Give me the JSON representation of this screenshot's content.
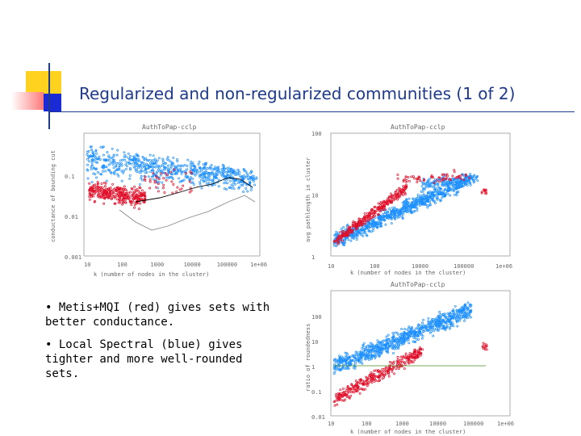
{
  "slide": {
    "title": "Regularized and non-regularized communities (1 of 2)",
    "bullets": [
      "• Metis+MQI (red) gives sets with better conductance.",
      "• Local Spectral (blue) gives tighter and more well-rounded sets."
    ]
  },
  "colors": {
    "title": "#1f3a8a",
    "series_blue": "#1e90ff",
    "series_red": "#e0102a",
    "deco_yellow": "#ffd21f",
    "deco_blue": "#1a2bd6",
    "deco_red": "#ff7a7a"
  },
  "chart_data": [
    {
      "type": "scatter",
      "title": "AuthToPap-cclp",
      "xlabel": "k (number of nodes in the cluster)",
      "ylabel": "conductance of bounding cut",
      "x_ticks": [
        "10",
        "100",
        "1000",
        "10000",
        "100000",
        "1e+06"
      ],
      "y_ticks": [
        "0.1",
        "0.01",
        "0.001"
      ],
      "xscale": "log",
      "yscale": "log",
      "xlim": [
        10,
        1000000
      ],
      "ylim": [
        0.001,
        1
      ],
      "series": [
        {
          "name": "Local Spectral",
          "color": "blue"
        },
        {
          "name": "Metis+MQI",
          "color": "red"
        },
        {
          "name": "black curve",
          "color": "black"
        },
        {
          "name": "gray curve",
          "color": "gray"
        }
      ]
    },
    {
      "type": "scatter",
      "title": "AuthToPap-cclp",
      "xlabel": "k (number of nodes in the cluster)",
      "ylabel": "avg pathlength in cluster",
      "x_ticks": [
        "10",
        "100",
        "10000",
        "100000",
        "1e+06"
      ],
      "y_ticks": [
        "100",
        "10",
        "1"
      ],
      "xscale": "log",
      "yscale": "log",
      "xlim": [
        10,
        1000000
      ],
      "ylim": [
        1,
        100
      ],
      "series": [
        {
          "name": "Local Spectral",
          "color": "blue"
        },
        {
          "name": "Metis+MQI",
          "color": "red"
        }
      ]
    },
    {
      "type": "scatter",
      "title": "AuthToPap-cclp",
      "xlabel": "k (number of nodes in the cluster)",
      "ylabel": "ratio of roundedness",
      "x_ticks": [
        "10",
        "100",
        "1000",
        "10000",
        "100000",
        "1e+06"
      ],
      "y_ticks": [
        "100",
        "10",
        "1",
        "0.1",
        "0.01"
      ],
      "xscale": "log",
      "yscale": "log",
      "xlim": [
        10,
        1000000
      ],
      "ylim": [
        0.01,
        100
      ],
      "series": [
        {
          "name": "Local Spectral",
          "color": "blue"
        },
        {
          "name": "Metis+MQI",
          "color": "red"
        },
        {
          "name": "reference line",
          "color": "green"
        }
      ]
    }
  ]
}
